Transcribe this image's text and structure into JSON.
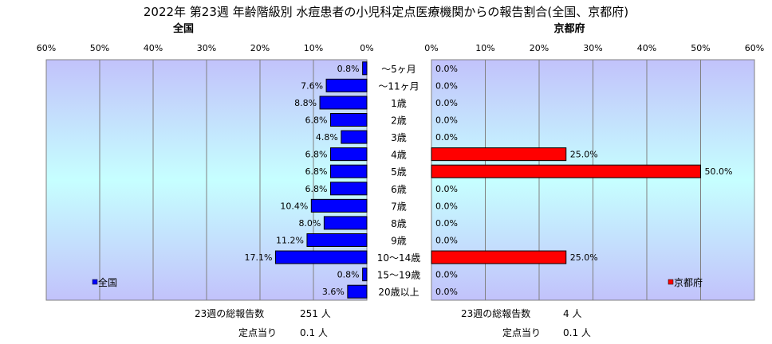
{
  "title": "2022年 第23週 年齢階級別 水痘患者の小児科定点医療機関からの報告割合(全国、京都府)",
  "colors": {
    "national": "#0000ff",
    "kyoto": "#ff0000",
    "bar_border": "#000000"
  },
  "chart_data": [
    {
      "type": "bar",
      "orientation": "horizontal-reversed",
      "title": "全国",
      "legend": "全国",
      "legend_placement": "bottom-left",
      "categories": [
        "～5ヶ月",
        "～11ヶ月",
        "1歳",
        "2歳",
        "3歳",
        "4歳",
        "5歳",
        "6歳",
        "7歳",
        "8歳",
        "9歳",
        "10～14歳",
        "15～19歳",
        "20歳以上"
      ],
      "series": [
        {
          "name": "全国",
          "values": [
            0.8,
            7.6,
            8.8,
            6.8,
            4.8,
            6.8,
            6.8,
            6.8,
            10.4,
            8.0,
            11.2,
            17.1,
            0.8,
            3.6
          ]
        }
      ],
      "value_labels": [
        "0.8%",
        "7.6%",
        "8.8%",
        "6.8%",
        "4.8%",
        "6.8%",
        "6.8%",
        "6.8%",
        "10.4%",
        "8.0%",
        "11.2%",
        "17.1%",
        "0.8%",
        "3.6%"
      ],
      "xlim": [
        0,
        60
      ],
      "ticks": [
        "60%",
        "50%",
        "40%",
        "30%",
        "20%",
        "10%",
        "0%"
      ],
      "grid": true
    },
    {
      "type": "bar",
      "orientation": "horizontal",
      "title": "京都府",
      "legend": "京都府",
      "legend_placement": "bottom-right",
      "categories": [
        "～5ヶ月",
        "～11ヶ月",
        "1歳",
        "2歳",
        "3歳",
        "4歳",
        "5歳",
        "6歳",
        "7歳",
        "8歳",
        "9歳",
        "10～14歳",
        "15～19歳",
        "20歳以上"
      ],
      "series": [
        {
          "name": "京都府",
          "values": [
            0,
            0,
            0,
            0,
            0,
            25,
            50,
            0,
            0,
            0,
            0,
            25,
            0,
            0
          ]
        }
      ],
      "value_labels": [
        "0.0%",
        "0.0%",
        "0.0%",
        "0.0%",
        "0.0%",
        "25.0%",
        "50.0%",
        "0.0%",
        "0.0%",
        "0.0%",
        "0.0%",
        "25.0%",
        "0.0%",
        "0.0%"
      ],
      "xlim": [
        0,
        60
      ],
      "ticks": [
        "0%",
        "10%",
        "20%",
        "30%",
        "40%",
        "50%",
        "60%"
      ],
      "grid": true
    }
  ],
  "footer": {
    "national": {
      "total_label": "23週の総報告数",
      "total_value": "251 人",
      "per_label": "定点当り",
      "per_value": "0.1 人"
    },
    "kyoto": {
      "total_label": "23週の総報告数",
      "total_value": "4 人",
      "per_label": "定点当り",
      "per_value": "0.1 人"
    }
  }
}
